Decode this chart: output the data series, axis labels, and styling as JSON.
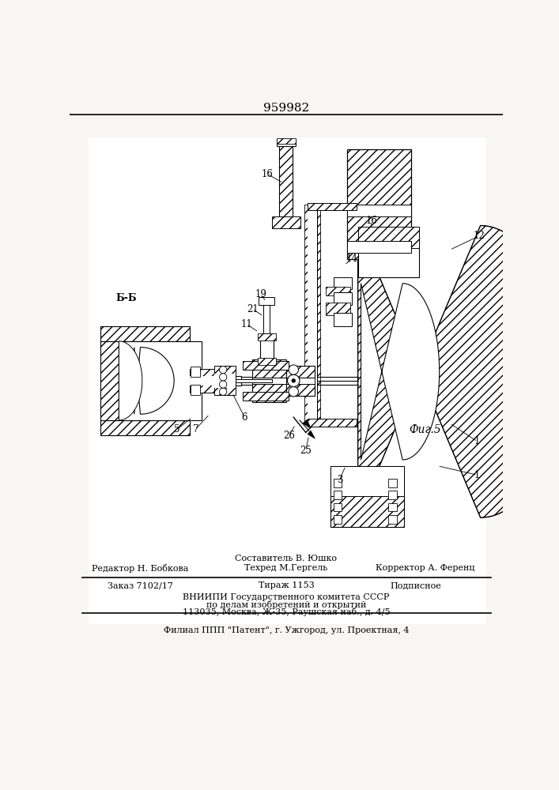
{
  "patent_number": "959982",
  "bg_color": "#f8f6f2",
  "footer": {
    "compiler_line": "Составитель В. Юшко",
    "editor_line": "Редактор Н. Бобкова",
    "techred_line": "Техред М.Гергель",
    "corrector_line": "Корректор А. Ференц",
    "order_line": "Заказ 7102/17",
    "tirazh_line": "Тираж 1153",
    "podpisnoe_line": "Подписное",
    "vniip_line": "ВНИИПИ Государственного комитета СССР",
    "vniip_line2": "по делам изобретений и открытий",
    "vniip_line3": "113035, Москва, Ж-35, Раушская наб., д. 4/5",
    "filial_line": "Филиал ППП \"Патент\", г. Ужгород, ул. Проектная, 4"
  },
  "fig_label": "Фиг.5",
  "section_label": "Б-Б"
}
